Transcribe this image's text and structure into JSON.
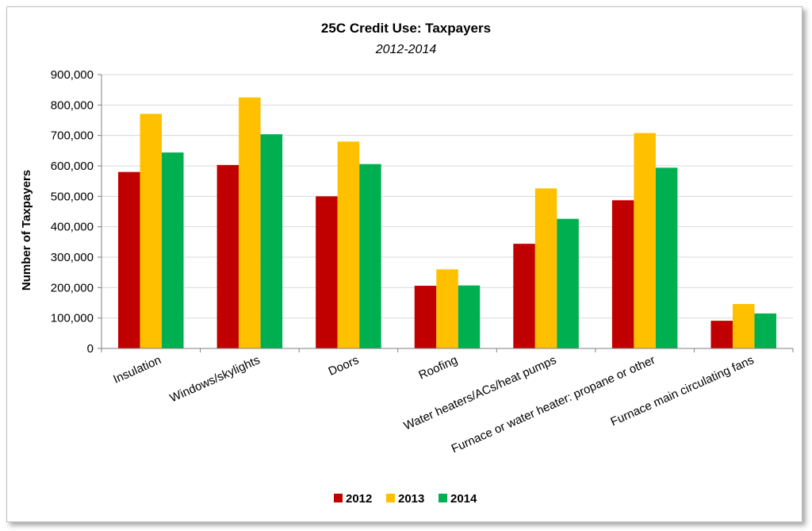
{
  "chart_data": {
    "type": "bar",
    "title": "25C Credit Use:  Taxpayers",
    "subtitle": "2012-2014",
    "ylabel": "Number of Taxpayers",
    "xlabel": "",
    "ylim": [
      0,
      900000
    ],
    "yticks": [
      "0",
      "100,000",
      "200,000",
      "300,000",
      "400,000",
      "500,000",
      "600,000",
      "700,000",
      "800,000",
      "900,000"
    ],
    "grid": true,
    "legend_position": "bottom",
    "categories": [
      "Insulation",
      "Windows/skylights",
      "Doors",
      "Roofing",
      "Water heaters/ACs/heat pumps",
      "Furnace or water heater: propane or other",
      "Furnace main circulating fans"
    ],
    "series": [
      {
        "name": "2012",
        "color": "#c00000",
        "values": [
          580000,
          603000,
          500000,
          206000,
          344000,
          487000,
          91000
        ]
      },
      {
        "name": "2013",
        "color": "#ffc000",
        "values": [
          771000,
          825000,
          680000,
          260000,
          526000,
          708000,
          146000
        ]
      },
      {
        "name": "2014",
        "color": "#00b050",
        "values": [
          644000,
          704000,
          606000,
          207000,
          426000,
          594000,
          115000
        ]
      }
    ]
  }
}
